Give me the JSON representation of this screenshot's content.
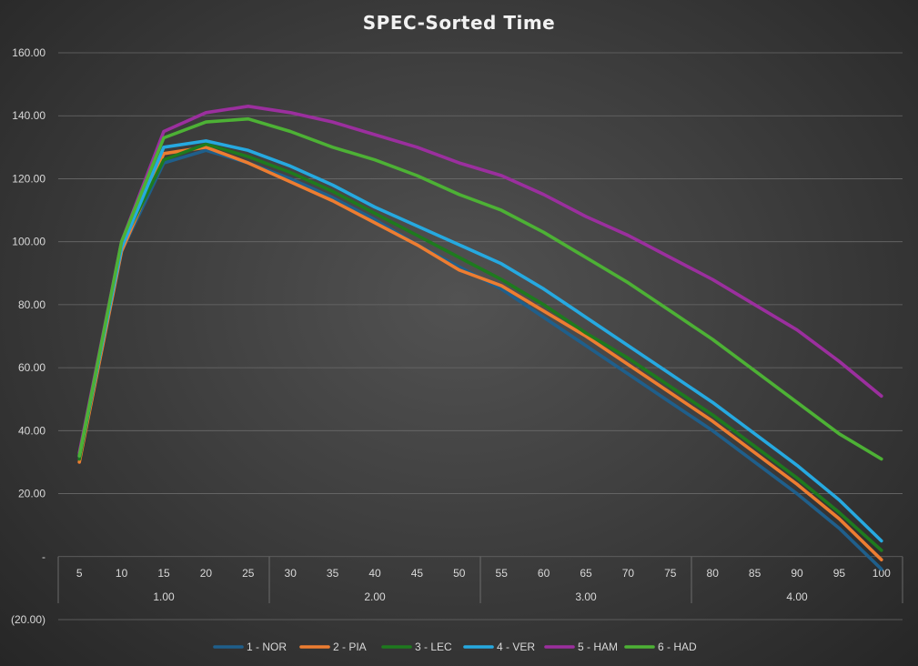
{
  "chart_data": {
    "type": "line",
    "title": "SPEC-Sorted Time",
    "xlabel": "",
    "ylabel": "",
    "ylim": [
      -20,
      160
    ],
    "y_ticks": [
      {
        "value": 160,
        "label": "160.00"
      },
      {
        "value": 140,
        "label": "140.00"
      },
      {
        "value": 120,
        "label": "120.00"
      },
      {
        "value": 100,
        "label": "100.00"
      },
      {
        "value": 80,
        "label": "80.00"
      },
      {
        "value": 60,
        "label": "60.00"
      },
      {
        "value": 40,
        "label": "40.00"
      },
      {
        "value": 20,
        "label": "20.00"
      },
      {
        "value": 0,
        "label": "-"
      },
      {
        "value": -20,
        "label": "(20.00)"
      }
    ],
    "categories": [
      "5",
      "10",
      "15",
      "20",
      "25",
      "30",
      "35",
      "40",
      "45",
      "50",
      "55",
      "60",
      "65",
      "70",
      "75",
      "80",
      "85",
      "90",
      "95",
      "100"
    ],
    "groups": [
      {
        "label": "1.00",
        "count": 5
      },
      {
        "label": "2.00",
        "count": 5
      },
      {
        "label": "3.00",
        "count": 5
      },
      {
        "label": "4.00",
        "count": 5
      }
    ],
    "grid": true,
    "legend_position": "bottom",
    "series": [
      {
        "name": "1 - NOR",
        "color": "#1f5f8b",
        "values": [
          32,
          97,
          125,
          129,
          125,
          120,
          114,
          107,
          99,
          92,
          85,
          76,
          67,
          58,
          49,
          40,
          30,
          20,
          9,
          -4
        ]
      },
      {
        "name": "2 - PIA",
        "color": "#ed7d31",
        "values": [
          30,
          97,
          128,
          130,
          125,
          119,
          113,
          106,
          99,
          91,
          86,
          78,
          70,
          61,
          52,
          43,
          33,
          23,
          12,
          -1
        ]
      },
      {
        "name": "3 - LEC",
        "color": "#1e7a1e",
        "values": [
          31,
          99,
          126,
          131,
          127,
          122,
          116,
          109,
          102,
          95,
          88,
          80,
          71,
          63,
          54,
          45,
          35,
          25,
          14,
          2
        ]
      },
      {
        "name": "4 - VER",
        "color": "#26a9e0",
        "values": [
          32,
          98,
          130,
          132,
          129,
          124,
          118,
          111,
          105,
          99,
          93,
          85,
          76,
          67,
          58,
          49,
          39,
          29,
          18,
          5
        ]
      },
      {
        "name": "5 - HAM",
        "color": "#9b2f9e",
        "values": [
          33,
          100,
          135,
          141,
          143,
          141,
          138,
          134,
          130,
          125,
          121,
          115,
          108,
          102,
          95,
          88,
          80,
          72,
          62,
          51
        ]
      },
      {
        "name": "6 - HAD",
        "color": "#4db135",
        "values": [
          32,
          100,
          133,
          138,
          139,
          135,
          130,
          126,
          121,
          115,
          110,
          103,
          95,
          87,
          78,
          69,
          59,
          49,
          39,
          31
        ]
      }
    ]
  }
}
